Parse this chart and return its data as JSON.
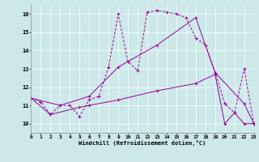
{
  "xlabel": "Windchill (Refroidissement éolien,°C)",
  "bg_color": "#cce8e8",
  "line_color": "#990099",
  "xlim": [
    0,
    23
  ],
  "ylim": [
    9.5,
    16.5
  ],
  "xticks": [
    0,
    1,
    2,
    3,
    4,
    5,
    6,
    7,
    8,
    9,
    10,
    11,
    12,
    13,
    14,
    15,
    16,
    17,
    18,
    19,
    20,
    21,
    22,
    23
  ],
  "yticks": [
    10,
    11,
    12,
    13,
    14,
    15,
    16
  ],
  "series_dashed": [
    [
      0,
      11.4
    ],
    [
      1,
      11.2
    ],
    [
      2,
      10.5
    ],
    [
      3,
      11.0
    ],
    [
      4,
      11.0
    ],
    [
      5,
      10.4
    ],
    [
      6,
      11.3
    ],
    [
      7,
      11.5
    ],
    [
      8,
      13.1
    ],
    [
      9,
      16.0
    ],
    [
      10,
      13.4
    ],
    [
      11,
      12.9
    ],
    [
      12,
      16.1
    ],
    [
      13,
      16.2
    ],
    [
      14,
      16.1
    ],
    [
      15,
      16.0
    ],
    [
      16,
      15.8
    ],
    [
      17,
      14.7
    ],
    [
      18,
      14.3
    ],
    [
      19,
      12.8
    ],
    [
      20,
      11.1
    ],
    [
      21,
      10.6
    ],
    [
      22,
      13.0
    ],
    [
      23,
      10.0
    ]
  ],
  "series_upper": [
    [
      0,
      11.4
    ],
    [
      3,
      11.0
    ],
    [
      6,
      11.5
    ],
    [
      9,
      13.1
    ],
    [
      13,
      14.3
    ],
    [
      17,
      15.8
    ],
    [
      19,
      12.8
    ],
    [
      22,
      11.1
    ],
    [
      23,
      10.0
    ]
  ],
  "series_lower": [
    [
      0,
      11.4
    ],
    [
      2,
      10.5
    ],
    [
      5,
      10.9
    ],
    [
      6,
      11.0
    ],
    [
      9,
      11.3
    ],
    [
      13,
      11.8
    ],
    [
      17,
      12.2
    ],
    [
      19,
      12.7
    ],
    [
      20,
      10.0
    ],
    [
      21,
      10.6
    ],
    [
      22,
      10.0
    ],
    [
      23,
      10.0
    ]
  ]
}
